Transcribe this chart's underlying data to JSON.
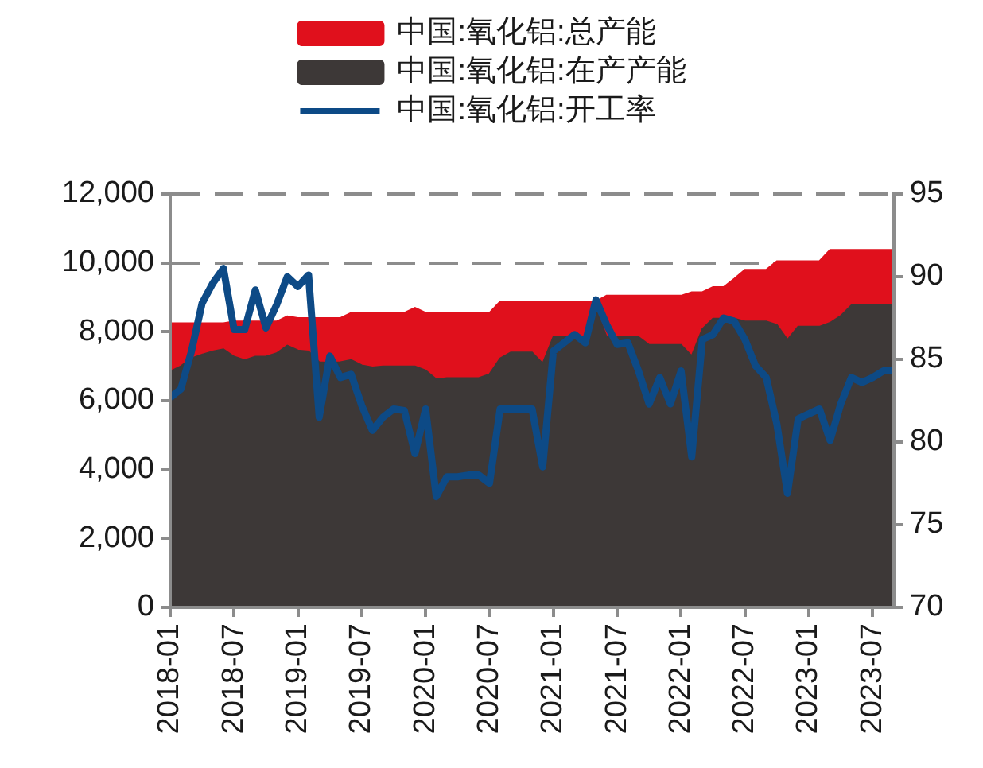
{
  "chart_data": {
    "type": "area",
    "x": [
      "2018-01",
      "2018-02",
      "2018-03",
      "2018-04",
      "2018-05",
      "2018-06",
      "2018-07",
      "2018-08",
      "2018-09",
      "2018-10",
      "2018-11",
      "2018-12",
      "2019-01",
      "2019-02",
      "2019-03",
      "2019-04",
      "2019-05",
      "2019-06",
      "2019-07",
      "2019-08",
      "2019-09",
      "2019-10",
      "2019-11",
      "2019-12",
      "2020-01",
      "2020-02",
      "2020-03",
      "2020-04",
      "2020-05",
      "2020-06",
      "2020-07",
      "2020-08",
      "2020-09",
      "2020-10",
      "2020-11",
      "2020-12",
      "2021-01",
      "2021-02",
      "2021-03",
      "2021-04",
      "2021-05",
      "2021-06",
      "2021-07",
      "2021-08",
      "2021-09",
      "2021-10",
      "2021-11",
      "2021-12",
      "2022-01",
      "2022-02",
      "2022-03",
      "2022-04",
      "2022-05",
      "2022-06",
      "2022-07",
      "2022-08",
      "2022-09",
      "2022-10",
      "2022-11",
      "2022-12",
      "2023-01",
      "2023-02",
      "2023-03",
      "2023-04",
      "2023-05",
      "2023-06",
      "2023-07",
      "2023-08",
      "2023-09"
    ],
    "xlim": [
      "2018-01",
      "2023-09"
    ],
    "xticks": [
      "2018-01",
      "2018-07",
      "2019-01",
      "2019-07",
      "2020-01",
      "2020-07",
      "2021-01",
      "2021-07",
      "2022-01",
      "2022-07",
      "2023-01",
      "2023-07"
    ],
    "ylim": [
      0,
      12000
    ],
    "yticks": [
      0,
      {
        "value": 2000,
        "label": "2,000"
      },
      {
        "value": 4000,
        "label": "4,000"
      },
      {
        "value": 6000,
        "label": "6,000"
      },
      {
        "value": 8000,
        "label": "8,000"
      },
      {
        "value": 10000,
        "label": "10,000"
      },
      {
        "value": 12000,
        "label": "12,000"
      }
    ],
    "y2lim": [
      70,
      95
    ],
    "y2ticks": [
      70,
      75,
      80,
      85,
      90,
      95
    ],
    "grid": "y",
    "legend": "top",
    "marker": "none",
    "line_style": "solid",
    "series": [
      {
        "name": "中国:氧化铝:总产能",
        "type": "area",
        "color": "#e0101c",
        "values": [
          8250,
          8250,
          8250,
          8250,
          8250,
          8250,
          8300,
          8300,
          8300,
          8300,
          8300,
          8450,
          8400,
          8400,
          8400,
          8400,
          8400,
          8550,
          8550,
          8550,
          8550,
          8550,
          8550,
          8700,
          8550,
          8550,
          8550,
          8550,
          8550,
          8550,
          8550,
          8880,
          8880,
          8880,
          8880,
          8880,
          8880,
          8880,
          8880,
          8880,
          8880,
          9050,
          9050,
          9050,
          9050,
          9050,
          9050,
          9050,
          9050,
          9150,
          9150,
          9300,
          9300,
          9540,
          9800,
          9800,
          9800,
          10050,
          10050,
          10050,
          10050,
          10050,
          10380,
          10380,
          10380,
          10380,
          10380,
          10380,
          10380
        ]
      },
      {
        "name": "中国:氧化铝:在产产能",
        "type": "area",
        "color": "#3d3837",
        "values": [
          6850,
          7000,
          7230,
          7340,
          7430,
          7490,
          7280,
          7180,
          7280,
          7280,
          7380,
          7600,
          7460,
          7430,
          7120,
          7100,
          7120,
          7180,
          7030,
          6970,
          7000,
          7000,
          7000,
          7000,
          6880,
          6620,
          6660,
          6660,
          6660,
          6660,
          6770,
          7230,
          7400,
          7400,
          7400,
          7080,
          7850,
          7850,
          7850,
          7850,
          8700,
          7850,
          7850,
          7850,
          7850,
          7620,
          7620,
          7620,
          7620,
          7300,
          8080,
          8380,
          8380,
          8380,
          8300,
          8300,
          8300,
          8200,
          7770,
          8150,
          8150,
          8150,
          8260,
          8460,
          8770,
          8770,
          8770,
          8770,
          8770
        ]
      },
      {
        "name": "中国:氧化铝:开工率",
        "type": "line",
        "axis": "y2",
        "color": "#0d4a86",
        "values": [
          82.7,
          83.2,
          85.5,
          88.4,
          89.6,
          90.5,
          86.8,
          86.8,
          89.2,
          86.9,
          88.3,
          90.0,
          89.4,
          90.1,
          81.5,
          85.2,
          83.9,
          84.1,
          82.2,
          80.7,
          81.5,
          82.0,
          81.9,
          79.3,
          82.0,
          76.7,
          77.9,
          77.9,
          78.0,
          78.0,
          77.5,
          82.0,
          82.0,
          82.0,
          82.0,
          78.5,
          85.5,
          86.0,
          86.5,
          86.0,
          88.6,
          87.1,
          85.9,
          86.0,
          84.3,
          82.3,
          83.9,
          82.3,
          84.3,
          79.1,
          86.2,
          86.5,
          87.5,
          87.3,
          86.2,
          84.6,
          83.9,
          81.1,
          76.9,
          81.4,
          81.7,
          82.0,
          80.1,
          82.3,
          83.9,
          83.6,
          83.9,
          84.3,
          84.3
        ]
      }
    ]
  }
}
